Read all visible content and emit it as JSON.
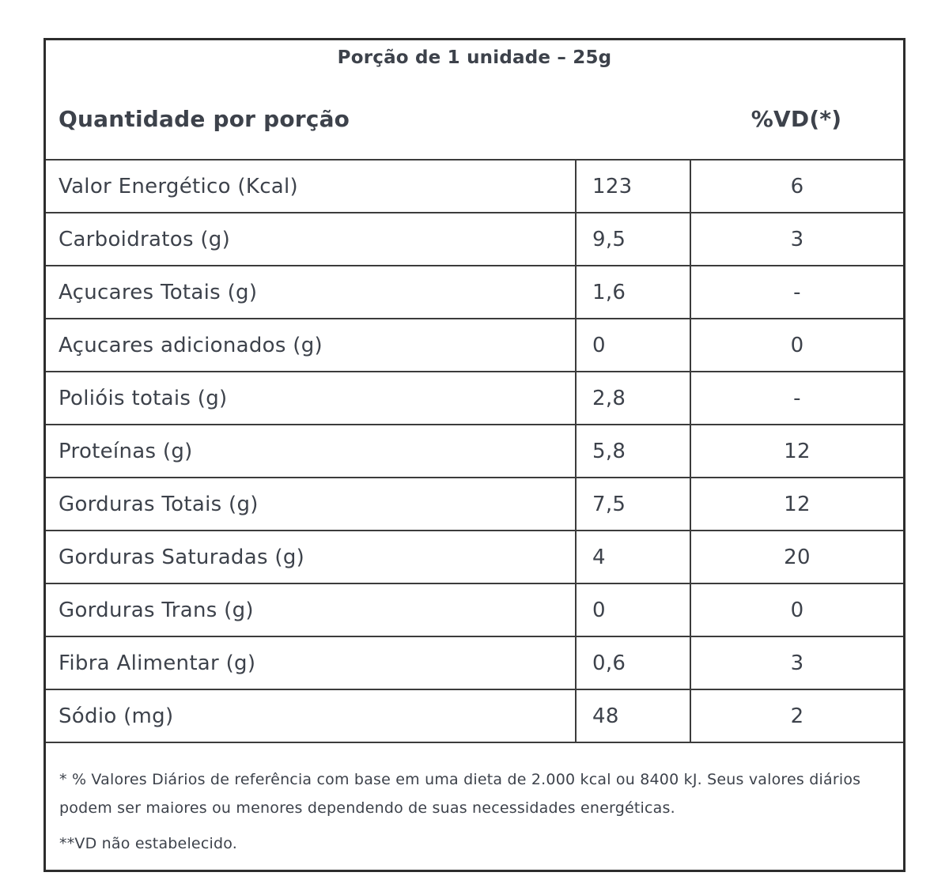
{
  "table": {
    "title": "Porção de 1 unidade – 25g",
    "header": {
      "quantity_label": "Quantidade por porção",
      "dv_label": "%VD(*)"
    },
    "rows": [
      {
        "label": "Valor Energético (Kcal)",
        "amount": "123",
        "dv": "6"
      },
      {
        "label": "Carboidratos (g)",
        "amount": "9,5",
        "dv": "3"
      },
      {
        "label": "Açucares Totais (g)",
        "amount": "1,6",
        "dv": "-"
      },
      {
        "label": "Açucares adicionados (g)",
        "amount": "0",
        "dv": "0"
      },
      {
        "label": "Polióis totais (g)",
        "amount": "2,8",
        "dv": "-"
      },
      {
        "label": "Proteínas (g)",
        "amount": "5,8",
        "dv": "12"
      },
      {
        "label": "Gorduras Totais (g)",
        "amount": "7,5",
        "dv": "12"
      },
      {
        "label": "Gorduras Saturadas (g)",
        "amount": "4",
        "dv": "20"
      },
      {
        "label": "Gorduras Trans (g)",
        "amount": "0",
        "dv": "0"
      },
      {
        "label": "Fibra Alimentar (g)",
        "amount": "0,6",
        "dv": "3"
      },
      {
        "label": "Sódio (mg)",
        "amount": "48",
        "dv": "2"
      }
    ],
    "footnotes": {
      "daily_values": "* % Valores Diários de referência com base em uma dieta de 2.000 kcal ou 8400 kJ. Seus valores diários podem ser maiores ou menores dependendo de suas necessidades energéticas.",
      "not_established": "**VD não estabelecido."
    },
    "colors": {
      "text": "#3d424b",
      "border": "#3c3c3c",
      "outer_border": "#2d2d2d",
      "background": "#ffffff"
    }
  }
}
